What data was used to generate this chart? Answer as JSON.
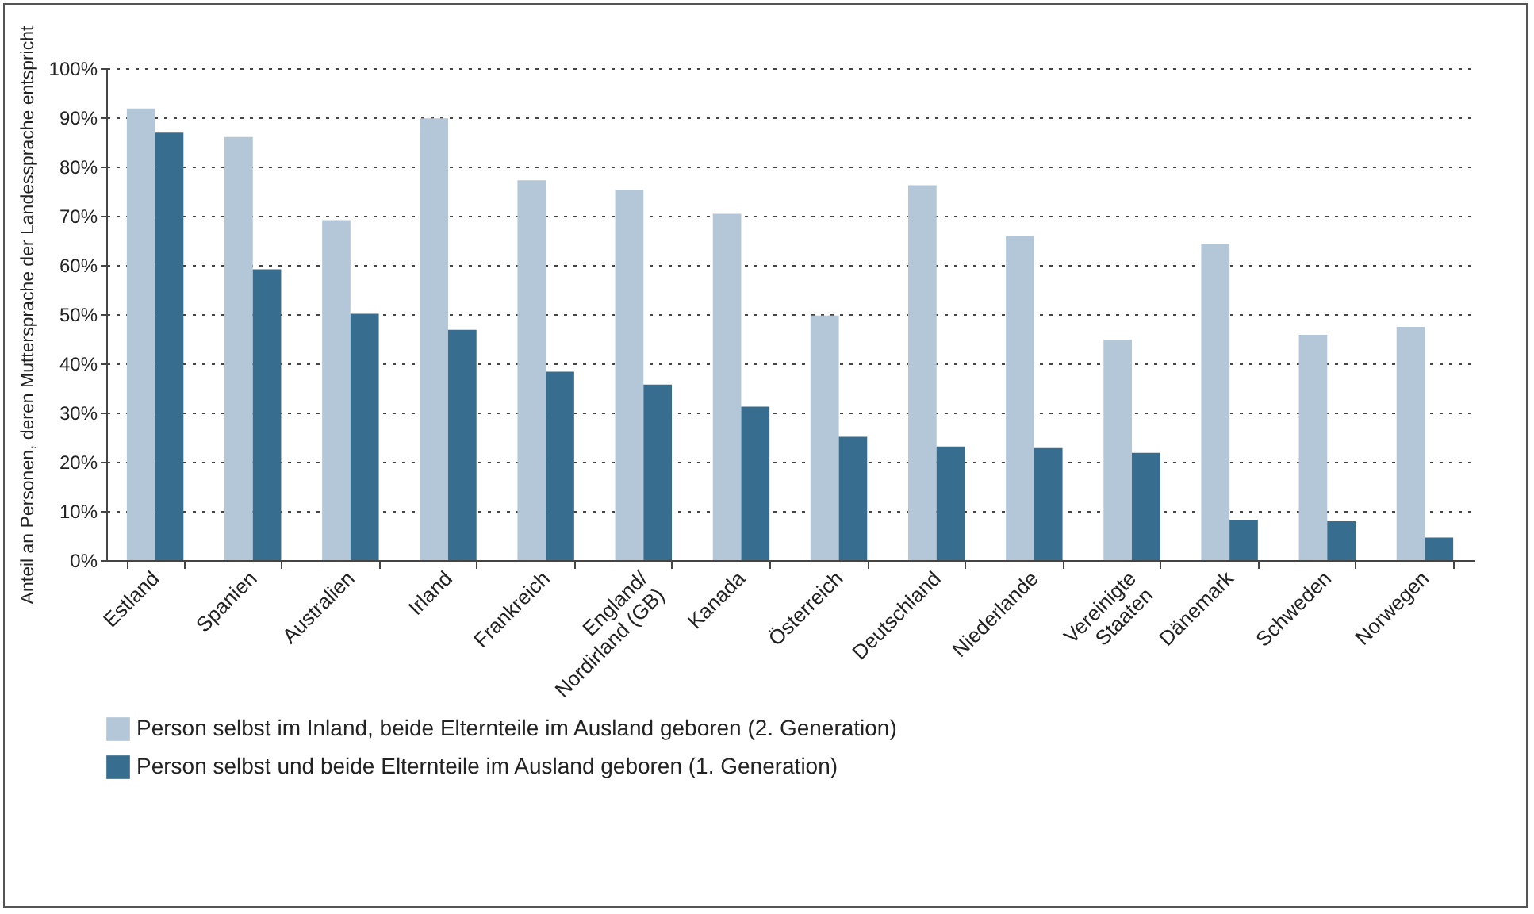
{
  "chart_data": {
    "type": "bar",
    "ylabel": "Anteil an Personen, deren Muttersprache der Landessprache entspricht",
    "categories": [
      "Estland",
      "Spanien",
      "Australien",
      "Irland",
      "Frankreich",
      "England/\nNordirland (GB)",
      "Kanada",
      "Österreich",
      "Deutschland",
      "Niederlande",
      "Vereinigte\nStaaten",
      "Dänemark",
      "Schweden",
      "Norwegen"
    ],
    "series": [
      {
        "name": "Person selbst im Inland, beide Elternteile im Ausland geboren (2. Generation)",
        "color": "#b3c7d8",
        "values": [
          91.8,
          86.0,
          69.1,
          89.8,
          77.2,
          75.3,
          70.4,
          49.7,
          76.2,
          65.9,
          44.8,
          64.3,
          45.8,
          47.4
        ]
      },
      {
        "name": "Person selbst und beide Elternteile im Ausland geboren (1. Generation)",
        "color": "#376d8e",
        "values": [
          86.9,
          59.1,
          50.1,
          46.8,
          38.3,
          35.7,
          31.2,
          25.1,
          23.1,
          22.8,
          21.8,
          8.2,
          7.9,
          4.6
        ]
      }
    ],
    "ylim": [
      0,
      100
    ],
    "yticks": [
      {
        "value": 0,
        "label": "0%"
      },
      {
        "value": 10,
        "label": "10%"
      },
      {
        "value": 20,
        "label": "20%"
      },
      {
        "value": 30,
        "label": "30%"
      },
      {
        "value": 40,
        "label": "40%"
      },
      {
        "value": 50,
        "label": "50%"
      },
      {
        "value": 60,
        "label": "60%"
      },
      {
        "value": 70,
        "label": "70%"
      },
      {
        "value": 80,
        "label": "80%"
      },
      {
        "value": 90,
        "label": "90%"
      },
      {
        "value": 100,
        "label": "100%"
      }
    ],
    "grid": "y",
    "legend": "bottom"
  }
}
